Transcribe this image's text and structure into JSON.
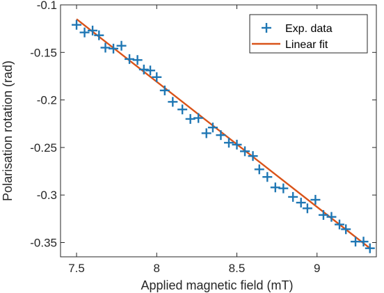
{
  "chart_data": {
    "type": "scatter",
    "xlabel": "Applied magnetic field (mT)",
    "ylabel": "Polarisation rotation (rad)",
    "xlim": [
      7.4,
      9.37
    ],
    "ylim": [
      -0.365,
      -0.1
    ],
    "xticks": [
      7.5,
      8,
      8.5,
      9
    ],
    "xtick_labels": [
      "7.5",
      "8",
      "8.5",
      "9"
    ],
    "yticks": [
      -0.1,
      -0.15,
      -0.2,
      -0.25,
      -0.3,
      -0.35
    ],
    "ytick_labels": [
      "-0.1",
      "-0.15",
      "-0.2",
      "-0.25",
      "-0.3",
      "-0.35"
    ],
    "grid": false,
    "legend": {
      "position": "top-right",
      "entries": [
        "Exp. data",
        "Linear fit"
      ]
    },
    "colors": {
      "data": "#1f77b4",
      "fit": "#d95319",
      "axis": "#262626"
    },
    "series": [
      {
        "name": "Exp. data",
        "marker": "plus",
        "points": [
          [
            7.5,
            -0.121
          ],
          [
            7.55,
            -0.129
          ],
          [
            7.6,
            -0.127
          ],
          [
            7.64,
            -0.132
          ],
          [
            7.68,
            -0.145
          ],
          [
            7.73,
            -0.146
          ],
          [
            7.78,
            -0.143
          ],
          [
            7.83,
            -0.157
          ],
          [
            7.88,
            -0.158
          ],
          [
            7.92,
            -0.168
          ],
          [
            7.96,
            -0.169
          ],
          [
            8.0,
            -0.176
          ],
          [
            8.05,
            -0.19
          ],
          [
            8.1,
            -0.202
          ],
          [
            8.16,
            -0.21
          ],
          [
            8.21,
            -0.22
          ],
          [
            8.26,
            -0.219
          ],
          [
            8.31,
            -0.235
          ],
          [
            8.35,
            -0.229
          ],
          [
            8.4,
            -0.237
          ],
          [
            8.45,
            -0.245
          ],
          [
            8.5,
            -0.247
          ],
          [
            8.55,
            -0.254
          ],
          [
            8.6,
            -0.259
          ],
          [
            8.64,
            -0.273
          ],
          [
            8.69,
            -0.281
          ],
          [
            8.74,
            -0.292
          ],
          [
            8.79,
            -0.293
          ],
          [
            8.85,
            -0.302
          ],
          [
            8.9,
            -0.308
          ],
          [
            8.94,
            -0.314
          ],
          [
            8.99,
            -0.305
          ],
          [
            9.04,
            -0.321
          ],
          [
            9.09,
            -0.323
          ],
          [
            9.14,
            -0.331
          ],
          [
            9.18,
            -0.336
          ],
          [
            9.24,
            -0.349
          ],
          [
            9.29,
            -0.349
          ],
          [
            9.33,
            -0.356
          ]
        ]
      },
      {
        "name": "Linear fit",
        "type": "line",
        "points": [
          [
            7.5,
            -0.115
          ],
          [
            9.33,
            -0.356
          ]
        ]
      }
    ]
  }
}
